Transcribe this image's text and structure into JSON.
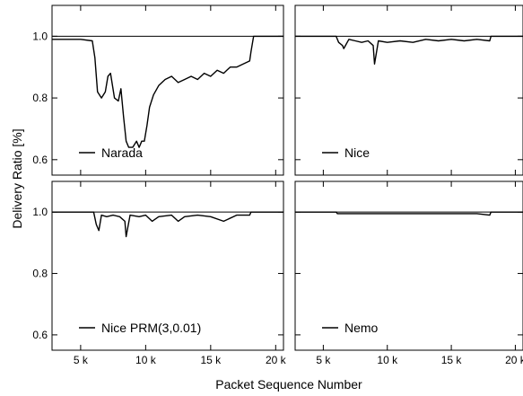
{
  "figure": {
    "ylabel": "Delivery Ratio [%]",
    "xlabel": "Packet Sequence Number"
  },
  "chart_data": [
    {
      "type": "line",
      "legend": "Narada",
      "xlim": [
        2800,
        20600
      ],
      "ylim": [
        0.55,
        1.1
      ],
      "xticks": [
        5000,
        10000,
        15000,
        20000
      ],
      "xtick_labels": [
        "5 k",
        "10 k",
        "15 k",
        "20 k"
      ],
      "yticks": [
        0.6,
        0.8,
        1.0
      ],
      "ytick_labels": [
        "0.6",
        "0.8",
        "1.0"
      ],
      "series": [
        {
          "x": [
            2800,
            3200,
            4000,
            5000,
            5900,
            6100,
            6300,
            6600,
            6900,
            7100,
            7300,
            7600,
            7900,
            8100,
            8300,
            8500,
            8700,
            9000,
            9300,
            9500,
            9700,
            9900,
            10100,
            10300,
            10600,
            11000,
            11500,
            12000,
            12500,
            13000,
            13500,
            14000,
            14500,
            15000,
            15500,
            16000,
            16500,
            17000,
            17500,
            18000,
            18100,
            18300,
            19000,
            20000,
            20600
          ],
          "y": [
            0.99,
            0.99,
            0.99,
            0.99,
            0.985,
            0.93,
            0.82,
            0.8,
            0.82,
            0.87,
            0.88,
            0.8,
            0.79,
            0.83,
            0.74,
            0.66,
            0.64,
            0.64,
            0.66,
            0.64,
            0.66,
            0.66,
            0.71,
            0.77,
            0.81,
            0.84,
            0.86,
            0.87,
            0.85,
            0.86,
            0.87,
            0.86,
            0.88,
            0.87,
            0.89,
            0.88,
            0.9,
            0.9,
            0.91,
            0.92,
            0.95,
            1.0,
            1.0,
            1.0,
            1.0
          ]
        }
      ]
    },
    {
      "type": "line",
      "legend": "Nice",
      "xlim": [
        2800,
        20600
      ],
      "ylim": [
        0.55,
        1.1
      ],
      "xticks": [
        5000,
        10000,
        15000,
        20000
      ],
      "xtick_labels": [
        "5 k",
        "10 k",
        "15 k",
        "20 k"
      ],
      "yticks": [
        0.6,
        0.8,
        1.0
      ],
      "series": [
        {
          "x": [
            2800,
            6000,
            6200,
            6500,
            6600,
            7000,
            7500,
            8000,
            8500,
            8900,
            9000,
            9300,
            10000,
            11000,
            12000,
            13000,
            14000,
            15000,
            16000,
            17000,
            18000,
            18100,
            20600
          ],
          "y": [
            1.0,
            1.0,
            0.98,
            0.97,
            0.96,
            0.99,
            0.985,
            0.98,
            0.985,
            0.97,
            0.91,
            0.985,
            0.98,
            0.985,
            0.98,
            0.99,
            0.985,
            0.99,
            0.985,
            0.99,
            0.985,
            1.0,
            1.0
          ]
        }
      ]
    },
    {
      "type": "line",
      "legend": "Nice PRM(3,0.01)",
      "xlim": [
        2800,
        20600
      ],
      "ylim": [
        0.55,
        1.1
      ],
      "xticks": [
        5000,
        10000,
        15000,
        20000
      ],
      "xtick_labels": [
        "5 k",
        "10 k",
        "15 k",
        "20 k"
      ],
      "yticks": [
        0.6,
        0.8,
        1.0
      ],
      "ytick_labels": [
        "0.6",
        "0.8",
        "1.0"
      ],
      "series": [
        {
          "x": [
            2800,
            6000,
            6200,
            6400,
            6600,
            7000,
            7500,
            8000,
            8400,
            8500,
            8800,
            9500,
            10000,
            10500,
            11000,
            12000,
            12500,
            13000,
            14000,
            15000,
            16000,
            17000,
            18000,
            18100,
            20600
          ],
          "y": [
            1.0,
            1.0,
            0.96,
            0.94,
            0.99,
            0.985,
            0.99,
            0.985,
            0.97,
            0.92,
            0.99,
            0.985,
            0.99,
            0.97,
            0.985,
            0.99,
            0.97,
            0.985,
            0.99,
            0.985,
            0.97,
            0.99,
            0.99,
            1.0,
            1.0
          ]
        }
      ]
    },
    {
      "type": "line",
      "legend": "Nemo",
      "xlim": [
        2800,
        20600
      ],
      "ylim": [
        0.55,
        1.1
      ],
      "xticks": [
        5000,
        10000,
        15000,
        20000
      ],
      "xtick_labels": [
        "5 k",
        "10 k",
        "15 k",
        "20 k"
      ],
      "yticks": [
        0.6,
        0.8,
        1.0
      ],
      "series": [
        {
          "x": [
            2800,
            6000,
            6100,
            7000,
            8000,
            9000,
            10000,
            11000,
            12000,
            13000,
            14000,
            15000,
            16000,
            17000,
            18000,
            18100,
            20600
          ],
          "y": [
            1.0,
            1.0,
            0.995,
            0.995,
            0.995,
            0.995,
            0.995,
            0.995,
            0.995,
            0.995,
            0.995,
            0.995,
            0.995,
            0.995,
            0.99,
            1.0,
            1.0
          ]
        }
      ]
    }
  ]
}
